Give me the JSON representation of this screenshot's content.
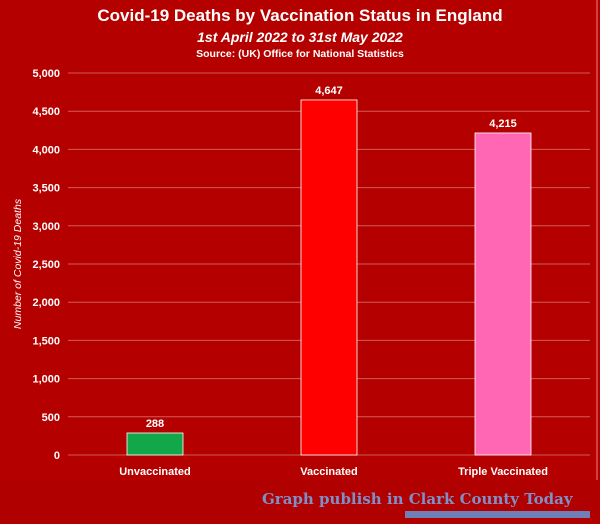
{
  "chart_data": {
    "type": "bar",
    "title": "Covid-19 Deaths by Vaccination Status in England",
    "subtitle": "1st April 2022 to 31st May 2022",
    "source": "Source: (UK) Office for National Statistics",
    "ylabel": "Number of Covid-19 Deaths",
    "xlabel": "",
    "ylim": [
      0,
      5000
    ],
    "yticks": [
      "0",
      "500",
      "1,000",
      "1,500",
      "2,000",
      "2,500",
      "3,000",
      "3,500",
      "4,000",
      "4,500",
      "5,000"
    ],
    "categories": [
      "Unvaccinated",
      "Vaccinated",
      "Triple Vaccinated"
    ],
    "values": [
      288,
      4647,
      4215
    ],
    "value_labels": [
      "288",
      "4,647",
      "4,215"
    ],
    "bar_colors": [
      "#12a84a",
      "#ff0000",
      "#ff66b3"
    ],
    "grid": true,
    "legend": "none"
  },
  "footer": {
    "text": "Graph publish in Clark County Today"
  },
  "colors": {
    "background": "#b00000",
    "grid": "#d45a5a",
    "text": "#ffffff"
  }
}
